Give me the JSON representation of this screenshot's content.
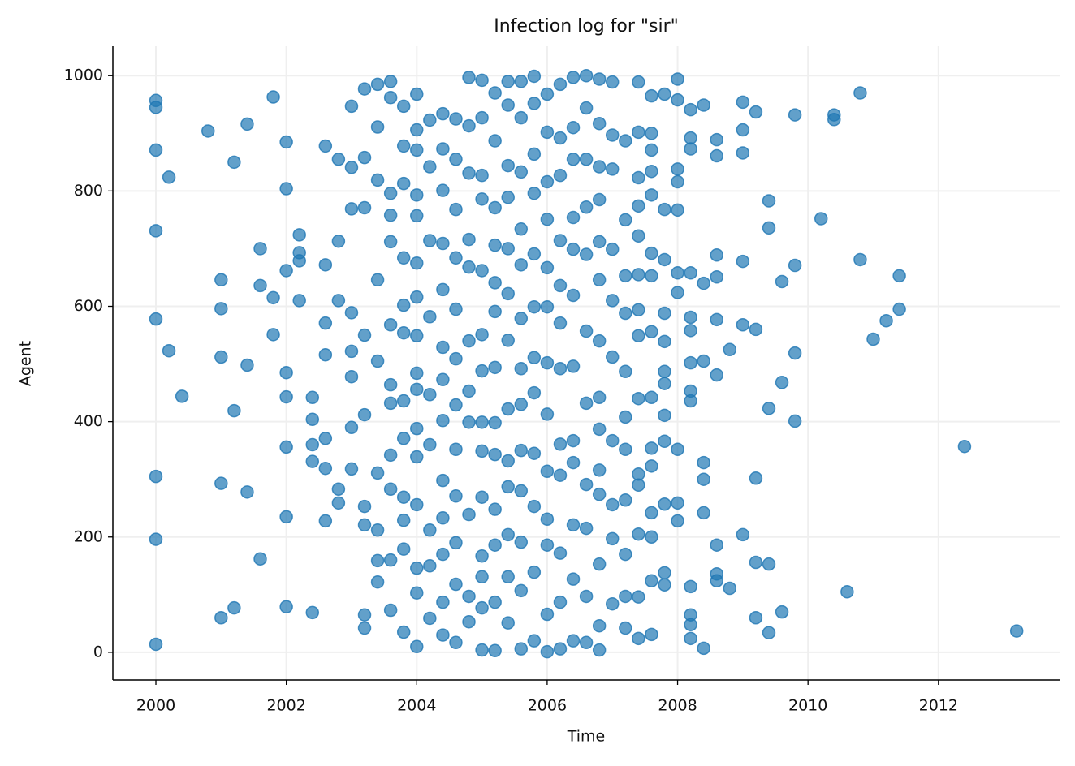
{
  "chart_data": {
    "type": "scatter",
    "title": "Infection log for \"sir\"",
    "x_label": "Time",
    "y_label": "Agent",
    "color": "#1f77b4",
    "grid": true,
    "xlim": [
      1999.34,
      2013.87
    ],
    "ylim": [
      -48,
      1051
    ],
    "xticks": [
      2000,
      2002,
      2004,
      2006,
      2008,
      2010,
      2012
    ],
    "yticks": [
      0,
      200,
      400,
      600,
      800,
      1000
    ],
    "x": [
      2000,
      2000,
      2000,
      2000,
      2000,
      2000,
      2000,
      2000,
      2000.2,
      2000.2,
      2000.4,
      2000.8,
      2001,
      2001,
      2001,
      2001,
      2001,
      2001.2,
      2001.2,
      2001.2,
      2001.4,
      2001.4,
      2001.4,
      2001.6,
      2001.6,
      2001.6,
      2001.8,
      2001.8,
      2001.8,
      2002,
      2002,
      2002,
      2002,
      2002,
      2002,
      2002,
      2002,
      2002.2,
      2002.2,
      2002.2,
      2002.2,
      2002.4,
      2002.4,
      2002.4,
      2002.4,
      2002.4,
      2002.6,
      2002.6,
      2002.6,
      2002.6,
      2002.6,
      2002.6,
      2002.6,
      2002.8,
      2002.8,
      2002.8,
      2002.8,
      2002.8,
      2003,
      2003,
      2003,
      2003,
      2003,
      2003,
      2003,
      2003,
      2003.2,
      2003.2,
      2003.2,
      2003.2,
      2003.2,
      2003.2,
      2003.2,
      2003.2,
      2003.2,
      2003.4,
      2003.4,
      2003.4,
      2003.4,
      2003.4,
      2003.4,
      2003.4,
      2003.4,
      2003.4,
      2003.6,
      2003.6,
      2003.6,
      2003.6,
      2003.6,
      2003.6,
      2003.6,
      2003.6,
      2003.6,
      2003.6,
      2003.6,
      2003.6,
      2003.8,
      2003.8,
      2003.8,
      2003.8,
      2003.8,
      2003.8,
      2003.8,
      2003.8,
      2003.8,
      2003.8,
      2003.8,
      2003.8,
      2004,
      2004,
      2004,
      2004,
      2004,
      2004,
      2004,
      2004,
      2004,
      2004,
      2004,
      2004,
      2004,
      2004,
      2004,
      2004,
      2004.2,
      2004.2,
      2004.2,
      2004.2,
      2004.2,
      2004.2,
      2004.2,
      2004.2,
      2004.2,
      2004.4,
      2004.4,
      2004.4,
      2004.4,
      2004.4,
      2004.4,
      2004.4,
      2004.4,
      2004.4,
      2004.4,
      2004.4,
      2004.4,
      2004.4,
      2004.6,
      2004.6,
      2004.6,
      2004.6,
      2004.6,
      2004.6,
      2004.6,
      2004.6,
      2004.6,
      2004.6,
      2004.6,
      2004.6,
      2004.8,
      2004.8,
      2004.8,
      2004.8,
      2004.8,
      2004.8,
      2004.8,
      2004.8,
      2004.8,
      2004.8,
      2004.8,
      2005,
      2005,
      2005,
      2005,
      2005,
      2005,
      2005,
      2005,
      2005,
      2005,
      2005,
      2005,
      2005,
      2005,
      2005.2,
      2005.2,
      2005.2,
      2005.2,
      2005.2,
      2005.2,
      2005.2,
      2005.2,
      2005.2,
      2005.2,
      2005.2,
      2005.2,
      2005.2,
      2005.4,
      2005.4,
      2005.4,
      2005.4,
      2005.4,
      2005.4,
      2005.4,
      2005.4,
      2005.4,
      2005.4,
      2005.4,
      2005.4,
      2005.4,
      2005.6,
      2005.6,
      2005.6,
      2005.6,
      2005.6,
      2005.6,
      2005.6,
      2005.6,
      2005.6,
      2005.6,
      2005.6,
      2005.6,
      2005.6,
      2005.8,
      2005.8,
      2005.8,
      2005.8,
      2005.8,
      2005.8,
      2005.8,
      2005.8,
      2005.8,
      2005.8,
      2005.8,
      2005.8,
      2006,
      2006,
      2006,
      2006,
      2006,
      2006,
      2006,
      2006,
      2006,
      2006,
      2006,
      2006,
      2006,
      2006.2,
      2006.2,
      2006.2,
      2006.2,
      2006.2,
      2006.2,
      2006.2,
      2006.2,
      2006.2,
      2006.2,
      2006.2,
      2006.2,
      2006.4,
      2006.4,
      2006.4,
      2006.4,
      2006.4,
      2006.4,
      2006.4,
      2006.4,
      2006.4,
      2006.4,
      2006.4,
      2006.4,
      2006.6,
      2006.6,
      2006.6,
      2006.6,
      2006.6,
      2006.6,
      2006.6,
      2006.6,
      2006.6,
      2006.6,
      2006.6,
      2006.8,
      2006.8,
      2006.8,
      2006.8,
      2006.8,
      2006.8,
      2006.8,
      2006.8,
      2006.8,
      2006.8,
      2006.8,
      2006.8,
      2006.8,
      2006.8,
      2007,
      2007,
      2007,
      2007,
      2007,
      2007,
      2007,
      2007,
      2007,
      2007,
      2007.2,
      2007.2,
      2007.2,
      2007.2,
      2007.2,
      2007.2,
      2007.2,
      2007.2,
      2007.2,
      2007.2,
      2007.2,
      2007.4,
      2007.4,
      2007.4,
      2007.4,
      2007.4,
      2007.4,
      2007.4,
      2007.4,
      2007.4,
      2007.4,
      2007.4,
      2007.4,
      2007.4,
      2007.4,
      2007.6,
      2007.6,
      2007.6,
      2007.6,
      2007.6,
      2007.6,
      2007.6,
      2007.6,
      2007.6,
      2007.6,
      2007.6,
      2007.6,
      2007.6,
      2007.6,
      2007.6,
      2007.8,
      2007.8,
      2007.8,
      2007.8,
      2007.8,
      2007.8,
      2007.8,
      2007.8,
      2007.8,
      2007.8,
      2007.8,
      2007.8,
      2008,
      2008,
      2008,
      2008,
      2008,
      2008,
      2008,
      2008,
      2008,
      2008,
      2008.2,
      2008.2,
      2008.2,
      2008.2,
      2008.2,
      2008.2,
      2008.2,
      2008.2,
      2008.2,
      2008.2,
      2008.2,
      2008.2,
      2008.2,
      2008.4,
      2008.4,
      2008.4,
      2008.4,
      2008.4,
      2008.4,
      2008.4,
      2008.6,
      2008.6,
      2008.6,
      2008.6,
      2008.6,
      2008.6,
      2008.6,
      2008.6,
      2008.6,
      2008.8,
      2008.8,
      2009,
      2009,
      2009,
      2009,
      2009,
      2009,
      2009.2,
      2009.2,
      2009.2,
      2009.2,
      2009.2,
      2009.4,
      2009.4,
      2009.4,
      2009.4,
      2009.4,
      2009.6,
      2009.6,
      2009.6,
      2009.8,
      2009.8,
      2009.8,
      2009.8,
      2010.2,
      2010.4,
      2010.4,
      2010.6,
      2010.8,
      2010.8,
      2011,
      2011.2,
      2011.4,
      2011.4,
      2012.4,
      2013.2
    ],
    "values": [
      957,
      945,
      871,
      731,
      578,
      305,
      196,
      14,
      824,
      523,
      444,
      904,
      646,
      596,
      512,
      293,
      60,
      850,
      419,
      77,
      916,
      498,
      278,
      700,
      636,
      162,
      963,
      615,
      551,
      885,
      804,
      662,
      485,
      443,
      356,
      235,
      79,
      724,
      693,
      679,
      610,
      442,
      404,
      360,
      331,
      69,
      878,
      672,
      571,
      516,
      371,
      319,
      228,
      855,
      713,
      610,
      283,
      259,
      947,
      841,
      769,
      589,
      522,
      478,
      390,
      318,
      977,
      858,
      771,
      550,
      412,
      253,
      221,
      65,
      42,
      985,
      911,
      819,
      646,
      505,
      311,
      212,
      159,
      122,
      990,
      962,
      796,
      758,
      712,
      568,
      464,
      432,
      342,
      283,
      160,
      73,
      947,
      878,
      813,
      684,
      602,
      554,
      436,
      371,
      269,
      229,
      179,
      35,
      968,
      906,
      871,
      793,
      757,
      675,
      616,
      549,
      484,
      456,
      388,
      339,
      256,
      146,
      103,
      10,
      923,
      842,
      714,
      582,
      447,
      360,
      212,
      150,
      59,
      934,
      873,
      801,
      709,
      629,
      529,
      473,
      402,
      298,
      233,
      170,
      87,
      30,
      925,
      855,
      768,
      684,
      595,
      509,
      429,
      352,
      271,
      190,
      118,
      17,
      997,
      913,
      831,
      716,
      668,
      540,
      453,
      399,
      239,
      97,
      53,
      992,
      927,
      827,
      786,
      662,
      551,
      488,
      399,
      349,
      269,
      167,
      131,
      77,
      4,
      970,
      887,
      771,
      706,
      641,
      591,
      494,
      398,
      343,
      248,
      186,
      87,
      3,
      990,
      949,
      844,
      789,
      700,
      622,
      541,
      422,
      332,
      287,
      204,
      131,
      51,
      990,
      927,
      833,
      734,
      672,
      579,
      492,
      430,
      350,
      280,
      191,
      107,
      6,
      999,
      952,
      864,
      796,
      691,
      599,
      511,
      450,
      345,
      253,
      139,
      20,
      968,
      902,
      816,
      751,
      667,
      599,
      502,
      413,
      314,
      231,
      186,
      66,
      1,
      985,
      892,
      827,
      714,
      636,
      571,
      492,
      361,
      307,
      172,
      87,
      6,
      997,
      910,
      855,
      754,
      699,
      619,
      496,
      367,
      329,
      221,
      127,
      20,
      1000,
      944,
      855,
      772,
      690,
      557,
      432,
      291,
      215,
      97,
      17,
      994,
      917,
      842,
      785,
      712,
      646,
      540,
      442,
      387,
      316,
      274,
      153,
      46,
      4,
      989,
      897,
      838,
      699,
      610,
      512,
      367,
      256,
      197,
      84,
      887,
      750,
      653,
      588,
      487,
      408,
      352,
      264,
      170,
      97,
      42,
      989,
      902,
      823,
      774,
      722,
      655,
      594,
      549,
      440,
      309,
      290,
      205,
      96,
      24,
      965,
      900,
      871,
      834,
      793,
      692,
      653,
      556,
      442,
      354,
      323,
      242,
      200,
      124,
      31,
      968,
      768,
      681,
      588,
      539,
      487,
      466,
      411,
      366,
      257,
      138,
      117,
      994,
      958,
      838,
      816,
      767,
      658,
      624,
      352,
      259,
      228,
      941,
      892,
      873,
      658,
      581,
      558,
      502,
      453,
      436,
      114,
      65,
      48,
      24,
      949,
      640,
      505,
      329,
      300,
      242,
      7,
      889,
      861,
      689,
      651,
      577,
      481,
      186,
      136,
      124,
      525,
      111,
      954,
      906,
      866,
      678,
      568,
      204,
      937,
      560,
      302,
      156,
      60,
      783,
      736,
      423,
      153,
      34,
      643,
      468,
      70,
      932,
      671,
      519,
      401,
      752,
      932,
      924,
      105,
      970,
      681,
      543,
      575,
      653,
      595,
      357,
      37
    ]
  }
}
